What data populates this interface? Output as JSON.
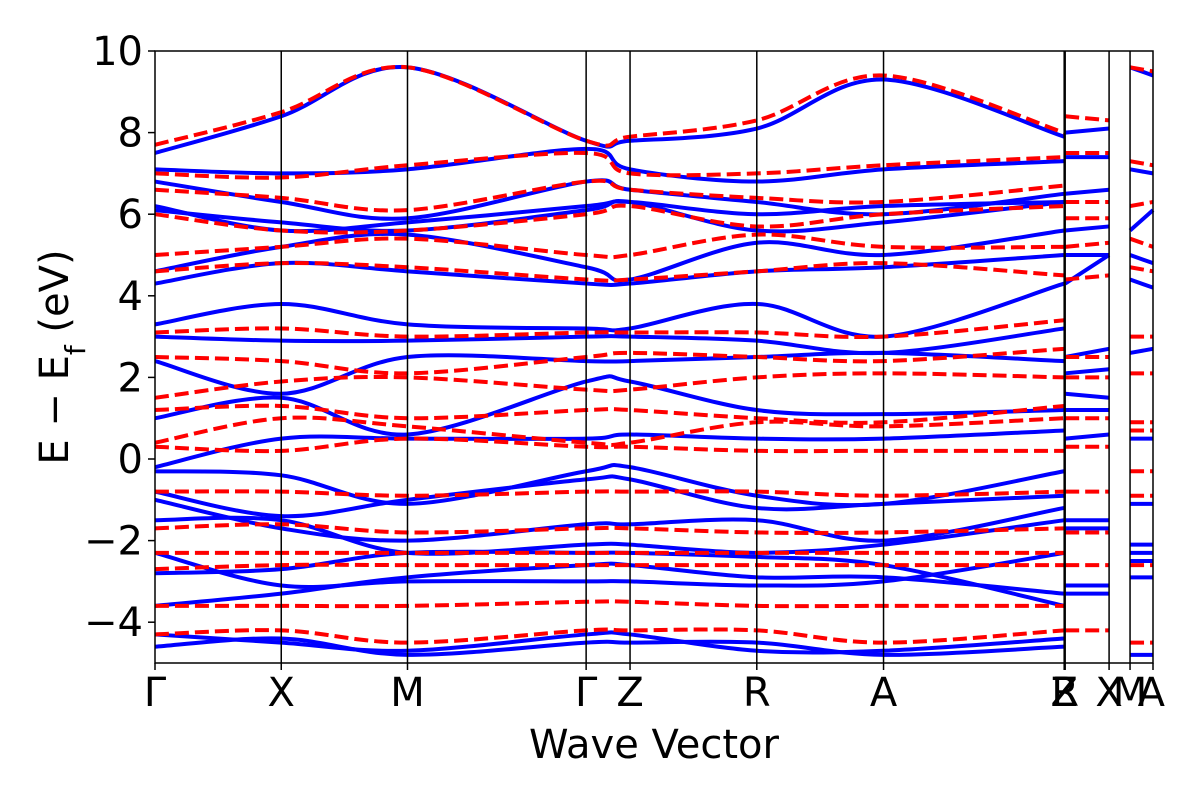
{
  "chart_data": {
    "type": "line",
    "title": "",
    "xlabel": "Wave Vector",
    "ylabel": "E − E",
    "ylabel_sub": "f",
    "ylabel_unit": " (eV)",
    "ylim": [
      -5,
      10
    ],
    "yticks": [
      -4,
      -2,
      0,
      2,
      4,
      6,
      8,
      10
    ],
    "ytick_labels": [
      "−4",
      "−2",
      "0",
      "2",
      "4",
      "6",
      "8",
      "10"
    ],
    "xlim": [
      0,
      10
    ],
    "kpoints": [
      {
        "label": "Γ",
        "x": 0.0
      },
      {
        "label": "X",
        "x": 1.265
      },
      {
        "label": "M",
        "x": 2.53
      },
      {
        "label": "Γ",
        "x": 4.32
      },
      {
        "label": "Z",
        "x": 4.76
      },
      {
        "label": "R",
        "x": 6.03
      },
      {
        "label": "A",
        "x": 7.3
      },
      {
        "label": "Z",
        "x": 9.11
      },
      {
        "label": "R",
        "x": 9.12
      },
      {
        "label": "X",
        "x": 9.56
      },
      {
        "label": "M",
        "x": 9.77
      },
      {
        "label": "A",
        "x": 10.0
      }
    ],
    "grid": false,
    "legend": "none",
    "series": [
      {
        "style": "solid",
        "color": "#0000ff",
        "x": [
          0.0,
          1.265,
          2.53,
          4.32,
          4.76,
          6.03,
          7.3,
          9.11
        ],
        "bands": [
          [
            -4.6,
            -4.4,
            -4.8,
            -4.5,
            -4.5,
            -4.5,
            -4.8,
            -4.6
          ],
          [
            -4.3,
            -4.5,
            -4.7,
            -4.3,
            -4.3,
            -4.7,
            -4.7,
            -4.4
          ],
          [
            -3.6,
            -3.3,
            -2.9,
            -2.6,
            -2.6,
            -2.9,
            -2.9,
            -3.3
          ],
          [
            -2.8,
            -2.7,
            -2.3,
            -2.3,
            -2.3,
            -2.4,
            -2.6,
            -3.6
          ],
          [
            -2.3,
            -3.1,
            -3.0,
            -3.0,
            -3.0,
            -3.1,
            -3.0,
            -2.3
          ],
          [
            -1.5,
            -1.5,
            -2.3,
            -2.1,
            -2.1,
            -2.3,
            -2.1,
            -1.5
          ],
          [
            -1.0,
            -1.7,
            -2.0,
            -1.6,
            -1.6,
            -1.5,
            -2.0,
            -1.2
          ],
          [
            -0.8,
            -1.4,
            -1.0,
            -0.5,
            -0.5,
            -1.2,
            -1.1,
            -0.9
          ],
          [
            -0.3,
            -0.4,
            -1.1,
            -0.3,
            -0.2,
            -0.9,
            -1.1,
            -0.3
          ],
          [
            -0.2,
            0.5,
            0.5,
            0.5,
            0.6,
            0.5,
            0.5,
            0.7
          ],
          [
            1.0,
            1.5,
            0.6,
            1.9,
            1.9,
            1.2,
            1.1,
            1.2
          ],
          [
            2.4,
            1.6,
            2.5,
            2.4,
            2.4,
            2.5,
            2.6,
            2.4
          ],
          [
            3.0,
            2.9,
            2.9,
            3.0,
            3.0,
            2.9,
            2.6,
            3.2
          ],
          [
            3.3,
            3.8,
            3.3,
            3.2,
            3.2,
            3.8,
            3.0,
            4.3
          ],
          [
            4.3,
            4.8,
            4.6,
            4.3,
            4.3,
            4.6,
            4.7,
            5.0
          ],
          [
            4.6,
            5.2,
            5.5,
            4.7,
            4.4,
            5.3,
            5.0,
            5.6
          ],
          [
            6.1,
            5.8,
            5.6,
            6.1,
            6.3,
            5.6,
            5.8,
            6.3
          ],
          [
            6.2,
            5.6,
            5.8,
            6.2,
            6.3,
            6.0,
            6.2,
            6.3
          ],
          [
            6.8,
            6.3,
            5.9,
            6.8,
            6.6,
            6.3,
            6.0,
            6.5
          ],
          [
            7.1,
            7.0,
            7.1,
            7.6,
            7.1,
            6.8,
            7.1,
            7.3
          ],
          [
            7.5,
            8.4,
            9.6,
            7.8,
            7.8,
            8.1,
            9.3,
            7.9
          ]
        ]
      },
      {
        "style": "dashed",
        "color": "#ff0000",
        "x": [
          0.0,
          1.265,
          2.53,
          4.32,
          4.76,
          6.03,
          7.3,
          9.11
        ],
        "bands": [
          [
            -4.3,
            -4.2,
            -4.5,
            -4.2,
            -4.2,
            -4.2,
            -4.5,
            -4.2
          ],
          [
            -3.6,
            -3.6,
            -3.6,
            -3.5,
            -3.5,
            -3.6,
            -3.6,
            -3.6
          ],
          [
            -2.7,
            -2.6,
            -2.6,
            -2.6,
            -2.6,
            -2.6,
            -2.6,
            -2.6
          ],
          [
            -2.3,
            -2.3,
            -2.3,
            -2.3,
            -2.3,
            -2.3,
            -2.3,
            -2.3
          ],
          [
            -1.7,
            -1.6,
            -1.8,
            -1.7,
            -1.7,
            -1.8,
            -1.8,
            -1.7
          ],
          [
            -0.8,
            -0.8,
            -0.9,
            -0.8,
            -0.8,
            -0.8,
            -0.9,
            -0.8
          ],
          [
            0.3,
            0.2,
            0.5,
            0.3,
            0.3,
            0.2,
            0.2,
            0.2
          ],
          [
            0.4,
            1.0,
            0.8,
            0.4,
            0.4,
            0.9,
            0.8,
            1.0
          ],
          [
            1.2,
            1.3,
            1.0,
            1.2,
            1.2,
            1.0,
            0.9,
            1.3
          ],
          [
            1.5,
            1.9,
            2.0,
            1.7,
            1.7,
            2.0,
            2.1,
            2.0
          ],
          [
            2.5,
            2.4,
            2.1,
            2.5,
            2.6,
            2.5,
            2.4,
            2.7
          ],
          [
            3.1,
            3.2,
            3.0,
            3.1,
            3.1,
            3.1,
            3.0,
            3.4
          ],
          [
            4.6,
            4.8,
            4.7,
            4.4,
            4.4,
            4.6,
            4.8,
            4.5
          ],
          [
            5.0,
            5.2,
            5.4,
            5.0,
            5.0,
            5.5,
            5.2,
            5.2
          ],
          [
            6.0,
            5.6,
            5.6,
            6.0,
            6.2,
            5.7,
            6.0,
            6.2
          ],
          [
            6.6,
            6.4,
            6.1,
            6.8,
            6.6,
            6.4,
            6.3,
            6.7
          ],
          [
            7.0,
            6.9,
            7.2,
            7.5,
            7.0,
            7.0,
            7.2,
            7.4
          ],
          [
            7.7,
            8.5,
            9.6,
            7.8,
            7.9,
            8.3,
            9.4,
            8.0
          ]
        ]
      },
      {
        "style": "solid",
        "color": "#0000ff",
        "x": [
          9.12,
          9.56
        ],
        "bands": [
          [
            -3.3,
            -3.3
          ],
          [
            -3.1,
            -3.1
          ],
          [
            -1.7,
            -1.7
          ],
          [
            -1.5,
            -1.5
          ],
          [
            0.5,
            0.6
          ],
          [
            1.2,
            1.2
          ],
          [
            1.6,
            1.5
          ],
          [
            2.1,
            2.2
          ],
          [
            2.5,
            2.7
          ],
          [
            4.3,
            5.0
          ],
          [
            5.0,
            5.0
          ],
          [
            5.6,
            5.7
          ],
          [
            6.5,
            6.6
          ],
          [
            7.4,
            7.4
          ],
          [
            8.0,
            8.1
          ]
        ]
      },
      {
        "style": "dashed",
        "color": "#ff0000",
        "x": [
          9.12,
          9.56
        ],
        "bands": [
          [
            -4.2,
            -4.2
          ],
          [
            -2.6,
            -2.6
          ],
          [
            -1.8,
            -1.8
          ],
          [
            -0.8,
            -0.8
          ],
          [
            0.3,
            0.3
          ],
          [
            1.0,
            1.0
          ],
          [
            2.0,
            2.0
          ],
          [
            2.5,
            2.5
          ],
          [
            4.4,
            4.5
          ],
          [
            5.2,
            5.3
          ],
          [
            5.9,
            5.9
          ],
          [
            6.3,
            6.3
          ],
          [
            7.5,
            7.5
          ],
          [
            8.4,
            8.3
          ]
        ]
      },
      {
        "style": "solid",
        "color": "#0000ff",
        "x": [
          9.77,
          10.0
        ],
        "bands": [
          [
            -4.8,
            -4.8
          ],
          [
            -2.9,
            -2.9
          ],
          [
            -2.5,
            -2.5
          ],
          [
            -2.3,
            -2.3
          ],
          [
            -2.1,
            -2.1
          ],
          [
            -1.1,
            -1.1
          ],
          [
            0.5,
            0.5
          ],
          [
            2.6,
            2.7
          ],
          [
            4.4,
            4.2
          ],
          [
            5.0,
            4.8
          ],
          [
            5.6,
            6.1
          ],
          [
            7.1,
            7.0
          ],
          [
            9.6,
            9.4
          ]
        ]
      },
      {
        "style": "dashed",
        "color": "#ff0000",
        "x": [
          9.77,
          10.0
        ],
        "bands": [
          [
            -4.5,
            -4.5
          ],
          [
            -2.6,
            -2.6
          ],
          [
            -0.9,
            -0.9
          ],
          [
            -0.3,
            -0.3
          ],
          [
            0.7,
            0.7
          ],
          [
            0.9,
            0.9
          ],
          [
            2.1,
            2.1
          ],
          [
            3.0,
            3.0
          ],
          [
            4.7,
            4.6
          ],
          [
            5.4,
            5.2
          ],
          [
            6.2,
            6.3
          ],
          [
            7.3,
            7.2
          ],
          [
            9.6,
            9.5
          ]
        ]
      }
    ]
  }
}
